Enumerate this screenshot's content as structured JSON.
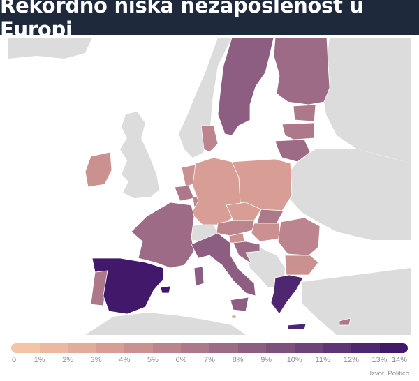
{
  "title": "Rekordno niska nezaposlenost u Europi",
  "source": "Izvor: Politico",
  "colors": {
    "title_bg": "#1e2a3b",
    "background_land": "#dcdcdc",
    "sea": "#ffffff",
    "scale": [
      "#f3c4a6",
      "#ecb8a0",
      "#e3ab9a",
      "#d89e95",
      "#ca9190",
      "#bc858d",
      "#ad7889",
      "#9e6b86",
      "#8e5e82",
      "#7e507e",
      "#6e437a",
      "#5e3575",
      "#4f2770",
      "#42186a"
    ]
  },
  "legend": {
    "ticks": [
      "0",
      "1%",
      "2%",
      "3%",
      "4%",
      "5%",
      "6%",
      "7%",
      "8%",
      "9%",
      "10%",
      "11%",
      "12%",
      "13%",
      "14%"
    ]
  },
  "map_data": {
    "value_unit": "%",
    "regions": [
      {
        "name": "Sweden",
        "value": 8
      },
      {
        "name": "Finland",
        "value": 7
      },
      {
        "name": "Estonia",
        "value": 6
      },
      {
        "name": "Latvia",
        "value": 6
      },
      {
        "name": "Lithuania",
        "value": 7
      },
      {
        "name": "Denmark",
        "value": 5
      },
      {
        "name": "Ireland",
        "value": 4
      },
      {
        "name": "Netherlands",
        "value": 4
      },
      {
        "name": "Belgium",
        "value": 6
      },
      {
        "name": "Luxembourg",
        "value": 5
      },
      {
        "name": "Germany",
        "value": 3
      },
      {
        "name": "Poland",
        "value": 3
      },
      {
        "name": "Czechia",
        "value": 3
      },
      {
        "name": "Austria",
        "value": 5
      },
      {
        "name": "Slovakia",
        "value": 6
      },
      {
        "name": "Hungary",
        "value": 4
      },
      {
        "name": "Slovenia",
        "value": 4
      },
      {
        "name": "Croatia",
        "value": 7
      },
      {
        "name": "Romania",
        "value": 5
      },
      {
        "name": "Bulgaria",
        "value": 4
      },
      {
        "name": "France",
        "value": 7
      },
      {
        "name": "Italy",
        "value": 8
      },
      {
        "name": "Portugal",
        "value": 6
      },
      {
        "name": "Spain",
        "value": 13
      },
      {
        "name": "Greece",
        "value": 12
      },
      {
        "name": "Cyprus",
        "value": 6
      },
      {
        "name": "Malta",
        "value": 3
      }
    ]
  }
}
